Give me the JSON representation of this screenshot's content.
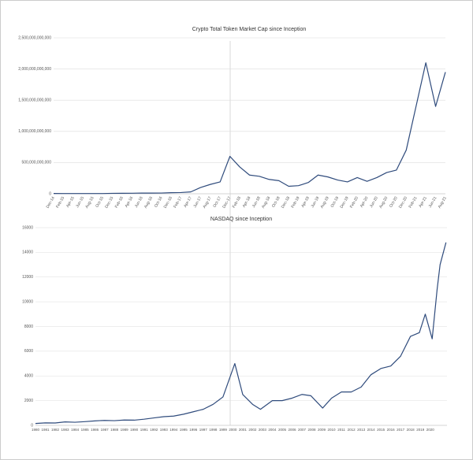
{
  "chart_data": [
    {
      "type": "line",
      "title": "Crypto Total Token Market Cap since Inception",
      "categories": [
        "Dec-14",
        "Feb-15",
        "Apr-15",
        "Jun-15",
        "Aug-15",
        "Oct-15",
        "Dec-15",
        "Feb-16",
        "Apr-16",
        "Jun-16",
        "Aug-16",
        "Oct-16",
        "Dec-16",
        "Feb-17",
        "Apr-17",
        "Jun-17",
        "Aug-17",
        "Oct-17",
        "Dec-17",
        "Feb-18",
        "Apr-18",
        "Jun-18",
        "Aug-18",
        "Oct-18",
        "Dec-18",
        "Feb-19",
        "Apr-19",
        "Jun-19",
        "Aug-19",
        "Oct-19",
        "Dec-19",
        "Feb-20",
        "Apr-20",
        "Jun-20",
        "Aug-20",
        "Oct-20",
        "Dec-20",
        "Feb-21",
        "Apr-21",
        "Jun-21",
        "Aug-21"
      ],
      "series": [
        {
          "color": "#2f4b7c",
          "values": [
            5000000000,
            4000000000,
            4000000000,
            4000000000,
            4000000000,
            4000000000,
            7000000000,
            8000000000,
            9000000000,
            12000000000,
            11000000000,
            12000000000,
            17000000000,
            20000000000,
            30000000000,
            100000000000,
            150000000000,
            190000000000,
            600000000000,
            430000000000,
            300000000000,
            280000000000,
            230000000000,
            210000000000,
            120000000000,
            130000000000,
            180000000000,
            300000000000,
            270000000000,
            220000000000,
            190000000000,
            260000000000,
            200000000000,
            260000000000,
            340000000000,
            380000000000,
            700000000000,
            1400000000000,
            2100000000000,
            1400000000000,
            1950000000000
          ]
        }
      ],
      "ylim": [
        0,
        2500000000000
      ],
      "yticks": [
        0,
        {
          "value": 500000000000,
          "label": "500,000,000,000"
        },
        {
          "value": 1000000000000,
          "label": "1,000,000,000,000"
        },
        {
          "value": 1500000000000,
          "label": "1,500,000,000,000"
        },
        {
          "value": 2000000000000,
          "label": "2,000,000,000,000"
        },
        {
          "value": 2500000000000,
          "label": "2,500,000,000,000"
        }
      ],
      "grid": true
    },
    {
      "type": "line",
      "title": "NASDAQ since Inception",
      "x": [
        1980,
        1981,
        1982,
        1983,
        1984,
        1985,
        1986,
        1987,
        1988,
        1989,
        1990,
        1991,
        1992,
        1993,
        1994,
        1995,
        1996,
        1997,
        1998,
        1999,
        2000.2,
        2001,
        2002,
        2002.8,
        2004,
        2005,
        2006,
        2007,
        2007.9,
        2009.1,
        2010,
        2011,
        2012,
        2013,
        2014,
        2015,
        2016,
        2017,
        2018,
        2018.9,
        2019.5,
        2020.2,
        2020.7,
        2021,
        2021.6
      ],
      "series": [
        {
          "color": "#2f4b7c",
          "values": [
            150,
            200,
            190,
            280,
            250,
            300,
            360,
            400,
            380,
            430,
            420,
            500,
            600,
            700,
            750,
            900,
            1100,
            1300,
            1700,
            2300,
            5000,
            2500,
            1700,
            1300,
            2000,
            2000,
            2200,
            2500,
            2400,
            1400,
            2200,
            2700,
            2700,
            3100,
            4100,
            4600,
            4800,
            5600,
            7200,
            7500,
            9000,
            7000,
            11000,
            13000,
            14800
          ]
        }
      ],
      "xlim": [
        1980,
        2021.7
      ],
      "xticks": [
        1980,
        1981,
        1982,
        1983,
        1984,
        1985,
        1986,
        1987,
        1988,
        1989,
        1990,
        1991,
        1992,
        1993,
        1994,
        1995,
        1996,
        1997,
        1998,
        1999,
        2000,
        2001,
        2002,
        2003,
        2004,
        2005,
        2006,
        2007,
        2008,
        2009,
        2010,
        2011,
        2012,
        2013,
        2014,
        2015,
        2016,
        2017,
        2018,
        2019,
        2020
      ],
      "ylim": [
        0,
        16000
      ],
      "yticks": [
        0,
        2000,
        4000,
        6000,
        8000,
        10000,
        12000,
        14000,
        16000
      ],
      "grid": true
    }
  ]
}
